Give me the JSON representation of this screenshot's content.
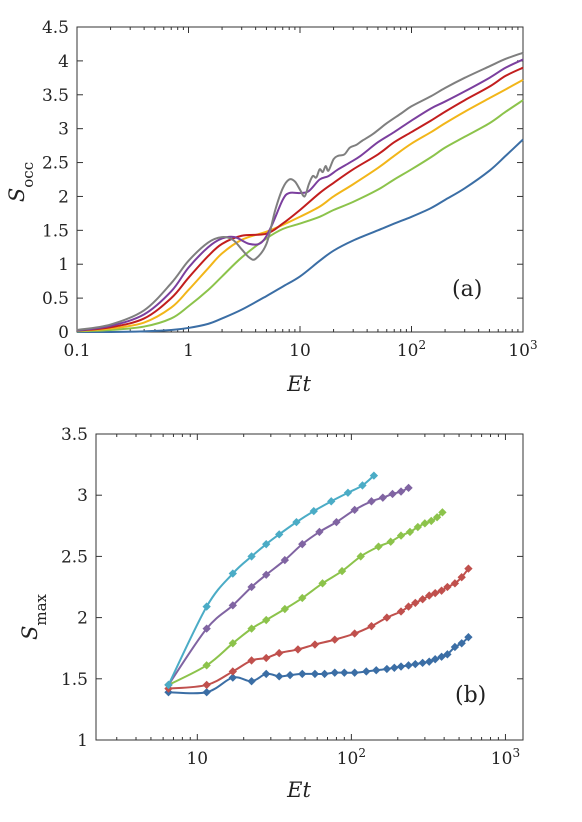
{
  "chart_data": [
    {
      "panel": "(a)",
      "type": "line",
      "xlabel": "Et",
      "ylabel": "S_occ",
      "xscale": "log",
      "xlim": [
        0.1,
        1000
      ],
      "ylim": [
        0,
        4.5
      ],
      "xticks": [
        "0.1",
        "1",
        "10",
        "10^2",
        "10^3"
      ],
      "yticks": [
        "0",
        "0.5",
        "1",
        "1.5",
        "2",
        "2.5",
        "3",
        "3.5",
        "4",
        "4.5"
      ],
      "grid": false,
      "legend": "none",
      "series": [
        {
          "color": "#3b6ea5",
          "x": [
            0.1,
            0.2,
            0.4,
            0.7,
            1,
            1.5,
            2,
            3,
            5,
            7,
            10,
            15,
            20,
            30,
            50,
            70,
            100,
            150,
            200,
            300,
            500,
            700,
            1000
          ],
          "y": [
            0.0,
            0.0,
            0.01,
            0.03,
            0.06,
            0.12,
            0.2,
            0.33,
            0.53,
            0.67,
            0.82,
            1.05,
            1.2,
            1.35,
            1.5,
            1.6,
            1.7,
            1.83,
            1.95,
            2.12,
            2.38,
            2.6,
            2.84
          ]
        },
        {
          "color": "#8cc34b",
          "x": [
            0.1,
            0.2,
            0.4,
            0.7,
            1,
            1.5,
            2,
            3,
            5,
            7,
            10,
            15,
            20,
            30,
            50,
            70,
            100,
            150,
            200,
            300,
            500,
            700,
            1000
          ],
          "y": [
            0.01,
            0.03,
            0.08,
            0.2,
            0.38,
            0.62,
            0.82,
            1.1,
            1.38,
            1.52,
            1.6,
            1.7,
            1.8,
            1.92,
            2.1,
            2.25,
            2.4,
            2.58,
            2.72,
            2.88,
            3.08,
            3.25,
            3.42
          ]
        },
        {
          "color": "#f2b619",
          "x": [
            0.1,
            0.2,
            0.4,
            0.7,
            1,
            1.5,
            2,
            3,
            5,
            7,
            10,
            15,
            20,
            30,
            50,
            70,
            100,
            150,
            200,
            300,
            500,
            700,
            1000
          ],
          "y": [
            0.02,
            0.05,
            0.14,
            0.36,
            0.62,
            0.94,
            1.16,
            1.36,
            1.48,
            1.58,
            1.7,
            1.85,
            2.0,
            2.18,
            2.42,
            2.6,
            2.78,
            2.95,
            3.08,
            3.25,
            3.45,
            3.58,
            3.72
          ]
        },
        {
          "color": "#c21e1e",
          "x": [
            0.1,
            0.2,
            0.4,
            0.7,
            1,
            1.5,
            2,
            3,
            5,
            7,
            10,
            15,
            20,
            30,
            50,
            70,
            100,
            150,
            200,
            300,
            500,
            700,
            1000
          ],
          "y": [
            0.02,
            0.07,
            0.2,
            0.5,
            0.8,
            1.12,
            1.3,
            1.42,
            1.45,
            1.6,
            1.8,
            2.05,
            2.2,
            2.4,
            2.62,
            2.8,
            2.95,
            3.12,
            3.25,
            3.42,
            3.62,
            3.78,
            3.9
          ]
        },
        {
          "color": "#7b3f9e",
          "x": [
            0.1,
            0.2,
            0.4,
            0.7,
            1,
            1.5,
            2,
            2.6,
            3.5,
            4.5,
            5.5,
            7,
            8,
            10,
            12,
            15,
            18,
            22,
            28,
            35,
            50,
            70,
            100,
            150,
            200,
            300,
            500,
            700,
            1000
          ],
          "y": [
            0.02,
            0.09,
            0.26,
            0.6,
            0.95,
            1.25,
            1.38,
            1.4,
            1.3,
            1.32,
            1.55,
            1.95,
            2.05,
            2.05,
            2.08,
            2.25,
            2.3,
            2.4,
            2.5,
            2.6,
            2.8,
            2.95,
            3.12,
            3.3,
            3.4,
            3.55,
            3.75,
            3.9,
            4.02
          ]
        },
        {
          "color": "#7f7f7f",
          "x": [
            0.1,
            0.2,
            0.4,
            0.7,
            1,
            1.5,
            2,
            2.5,
            3,
            3.5,
            4,
            5,
            6,
            7,
            8,
            9,
            10,
            11,
            12,
            13,
            14,
            15,
            16,
            17,
            18,
            20,
            22,
            25,
            28,
            32,
            36,
            45,
            60,
            80,
            100,
            150,
            200,
            300,
            500,
            700,
            1000
          ],
          "y": [
            0.03,
            0.11,
            0.32,
            0.72,
            1.05,
            1.32,
            1.4,
            1.36,
            1.22,
            1.1,
            1.08,
            1.3,
            1.8,
            2.12,
            2.25,
            2.22,
            2.1,
            2.0,
            2.18,
            2.3,
            2.28,
            2.4,
            2.36,
            2.45,
            2.38,
            2.55,
            2.6,
            2.62,
            2.72,
            2.76,
            2.82,
            2.92,
            3.08,
            3.22,
            3.33,
            3.48,
            3.6,
            3.75,
            3.92,
            4.03,
            4.12
          ]
        }
      ]
    },
    {
      "panel": "(b)",
      "type": "line",
      "xlabel": "Et",
      "ylabel": "S_max",
      "xscale": "log",
      "xlim": [
        2.2,
        1300
      ],
      "ylim": [
        1,
        3.5
      ],
      "xticks": [
        "10",
        "10^2",
        "10^3"
      ],
      "yticks": [
        "1",
        "1.5",
        "2",
        "2.5",
        "3",
        "3.5"
      ],
      "grid": false,
      "legend": "none",
      "markers": "diamond",
      "series": [
        {
          "color": "#3b6ea5",
          "x": [
            6.5,
            11.5,
            17,
            22.5,
            28,
            34,
            40,
            48,
            58,
            67,
            78,
            90,
            105,
            125,
            145,
            170,
            190,
            210,
            235,
            260,
            290,
            320,
            350,
            385,
            420,
            470,
            520,
            575
          ],
          "y": [
            1.39,
            1.39,
            1.51,
            1.48,
            1.54,
            1.52,
            1.53,
            1.54,
            1.54,
            1.54,
            1.55,
            1.55,
            1.55,
            1.56,
            1.57,
            1.58,
            1.59,
            1.6,
            1.61,
            1.62,
            1.63,
            1.64,
            1.66,
            1.68,
            1.7,
            1.76,
            1.79,
            1.84
          ]
        },
        {
          "color": "#c0504d",
          "x": [
            6.5,
            11.5,
            17,
            22.5,
            28,
            34,
            45,
            58,
            78,
            105,
            135,
            170,
            210,
            235,
            260,
            290,
            320,
            350,
            385,
            420,
            470,
            520,
            575
          ],
          "y": [
            1.42,
            1.45,
            1.56,
            1.65,
            1.67,
            1.71,
            1.74,
            1.78,
            1.82,
            1.87,
            1.93,
            2.0,
            2.05,
            2.09,
            2.12,
            2.15,
            2.18,
            2.2,
            2.22,
            2.25,
            2.28,
            2.33,
            2.4
          ]
        },
        {
          "color": "#8cc34b",
          "x": [
            6.5,
            11.5,
            17,
            22.5,
            28,
            37,
            48,
            65,
            87,
            115,
            150,
            180,
            210,
            240,
            270,
            300,
            330,
            360,
            390
          ],
          "y": [
            1.45,
            1.61,
            1.79,
            1.91,
            1.98,
            2.07,
            2.16,
            2.28,
            2.38,
            2.5,
            2.58,
            2.62,
            2.67,
            2.7,
            2.74,
            2.77,
            2.79,
            2.82,
            2.86
          ]
        },
        {
          "color": "#8064a2",
          "x": [
            6.5,
            11.5,
            17,
            22.5,
            28,
            37,
            48,
            62,
            80,
            105,
            135,
            160,
            185,
            210,
            235
          ],
          "y": [
            1.45,
            1.91,
            2.1,
            2.25,
            2.35,
            2.47,
            2.6,
            2.7,
            2.78,
            2.88,
            2.95,
            2.98,
            3.01,
            3.03,
            3.06
          ]
        },
        {
          "color": "#4bacc6",
          "x": [
            6.5,
            11.5,
            17,
            22.5,
            28,
            34,
            44,
            57,
            74,
            95,
            118,
            140
          ],
          "y": [
            1.45,
            2.09,
            2.36,
            2.5,
            2.6,
            2.68,
            2.78,
            2.87,
            2.95,
            3.02,
            3.08,
            3.16
          ]
        }
      ]
    }
  ],
  "panel_a": {
    "tag": "(a)"
  },
  "panel_b": {
    "tag": "(b)"
  }
}
